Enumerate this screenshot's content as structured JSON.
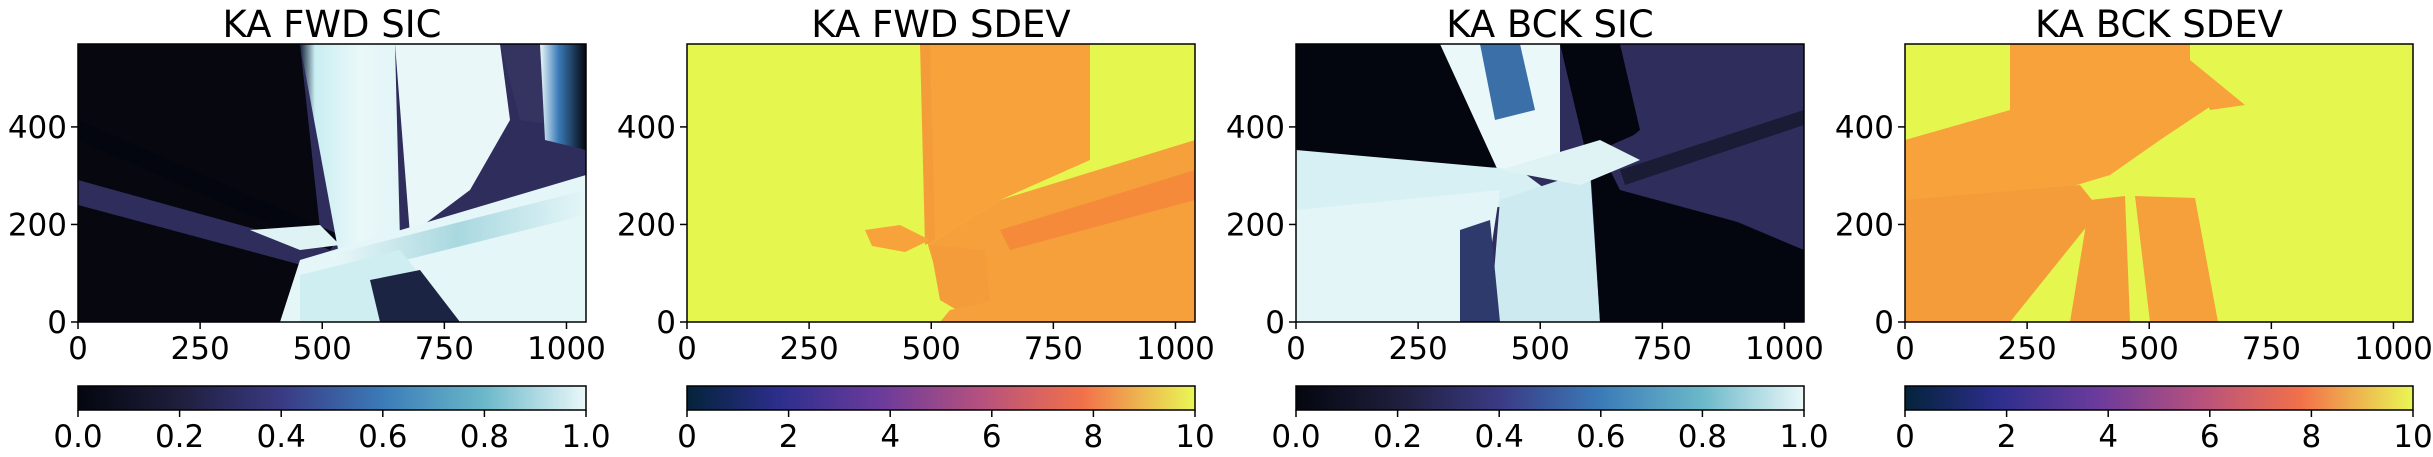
{
  "chart_data": [
    {
      "type": "heatmap",
      "title": "KA FWD SIC",
      "xlim": [
        0,
        1040
      ],
      "ylim": [
        0,
        570
      ],
      "xticks": [
        0,
        250,
        500,
        750,
        1000
      ],
      "yticks": [
        0,
        200,
        400
      ],
      "colormap": "ice",
      "colorbar": {
        "placement": "bottom",
        "range": [
          0.0,
          1.0
        ],
        "ticks": [
          "0.0",
          "0.2",
          "0.4",
          "0.6",
          "0.8",
          "1.0"
        ]
      },
      "colors": {
        "low": "#04060f",
        "mid": "#2f2d5c",
        "high": "#eaf8f9"
      }
    },
    {
      "type": "heatmap",
      "title": "KA FWD SDEV",
      "xlim": [
        0,
        1040
      ],
      "ylim": [
        0,
        570
      ],
      "xticks": [
        0,
        250,
        500,
        750,
        1000
      ],
      "yticks": [
        0,
        200,
        400
      ],
      "colormap": "thermal",
      "colorbar": {
        "placement": "bottom",
        "range": [
          0,
          10
        ],
        "ticks": [
          "0",
          "2",
          "4",
          "6",
          "8",
          "10"
        ]
      },
      "colors": {
        "field": "#e5f64f",
        "band": "#f7a23b"
      }
    },
    {
      "type": "heatmap",
      "title": "KA BCK SIC",
      "xlim": [
        0,
        1040
      ],
      "ylim": [
        0,
        570
      ],
      "xticks": [
        0,
        250,
        500,
        750,
        1000
      ],
      "yticks": [
        0,
        200,
        400
      ],
      "colormap": "ice",
      "colorbar": {
        "placement": "bottom",
        "range": [
          0.0,
          1.0
        ],
        "ticks": [
          "0.0",
          "0.2",
          "0.4",
          "0.6",
          "0.8",
          "1.0"
        ]
      },
      "colors": {
        "low": "#04060f",
        "mid": "#2f2d5c",
        "high": "#d8f1f3"
      }
    },
    {
      "type": "heatmap",
      "title": "KA BCK SDEV",
      "xlim": [
        0,
        1040
      ],
      "ylim": [
        0,
        570
      ],
      "xticks": [
        0,
        250,
        500,
        750,
        1000
      ],
      "yticks": [
        0,
        200,
        400
      ],
      "colormap": "thermal",
      "colorbar": {
        "placement": "bottom",
        "range": [
          0,
          10
        ],
        "ticks": [
          "0",
          "2",
          "4",
          "6",
          "8",
          "10"
        ]
      },
      "colors": {
        "field": "#e5f64f",
        "band": "#f7a23b"
      }
    }
  ]
}
